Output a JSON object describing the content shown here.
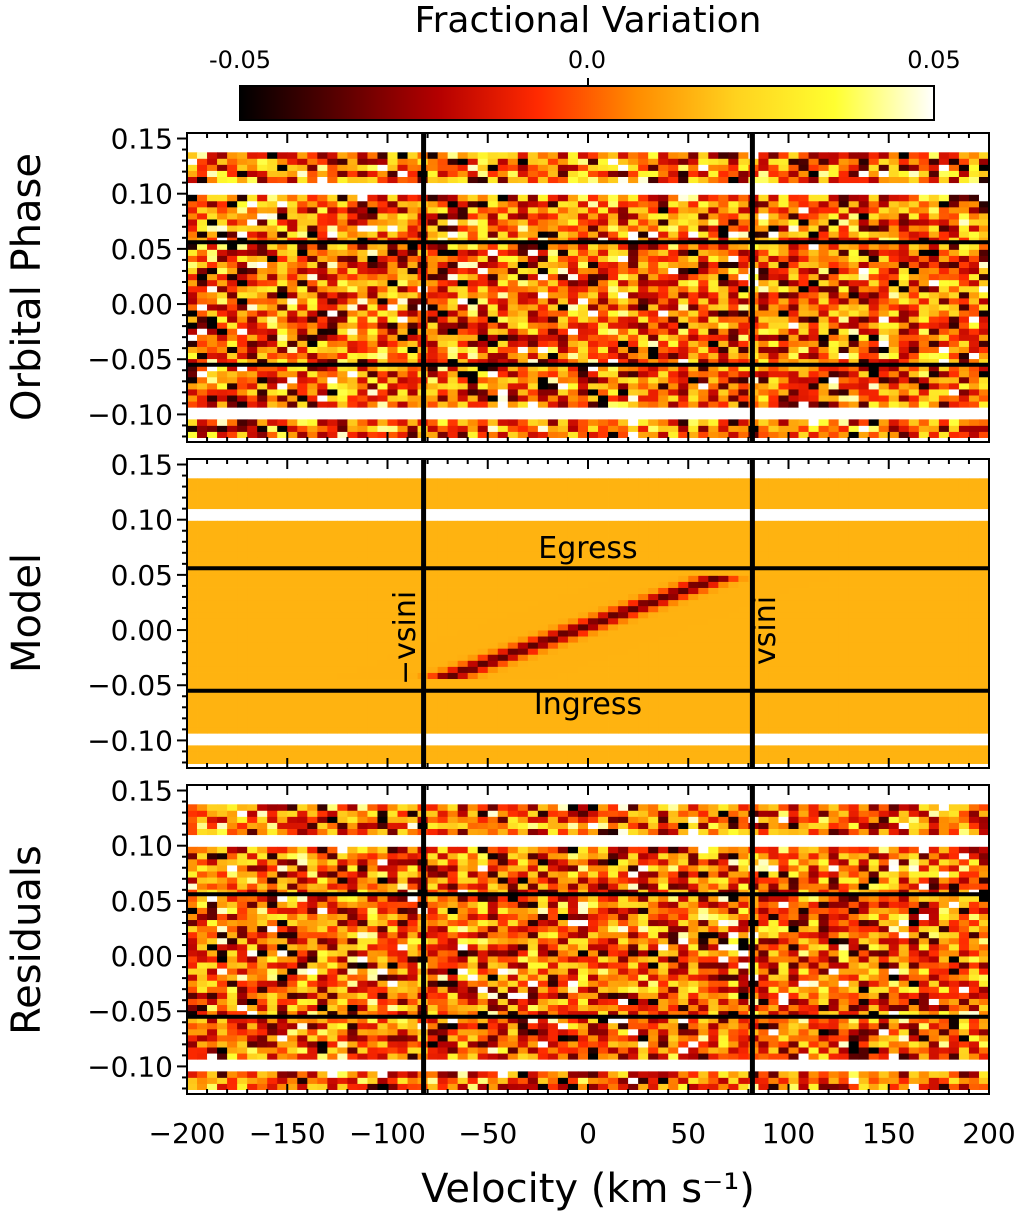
{
  "chart_data": {
    "type": "heatmap",
    "colorbar": {
      "title": "Fractional Variation",
      "range": [
        -0.05,
        0.05
      ],
      "ticks": [
        -0.05,
        0.0,
        0.05
      ],
      "tick_labels": [
        "-0.05",
        "0.0",
        "0.05"
      ],
      "colormap": [
        "#000000",
        "#5a0000",
        "#b40000",
        "#ff2a00",
        "#ff8c00",
        "#ffd21e",
        "#ffff30",
        "#ffffff"
      ]
    },
    "xlabel": "Velocity (km s⁻¹)",
    "xlim": [
      -200,
      200
    ],
    "xticks": [
      -200,
      -150,
      -100,
      -50,
      0,
      50,
      100,
      150,
      200
    ],
    "xtick_labels": [
      "−200",
      "−150",
      "−100",
      "−50",
      "0",
      "50",
      "100",
      "150",
      "200"
    ],
    "ylim": [
      -0.125,
      0.155
    ],
    "yticks": [
      -0.1,
      -0.05,
      0.0,
      0.05,
      0.1,
      0.15
    ],
    "ytick_labels": [
      "−0.10",
      "−0.05",
      "0.00",
      "0.05",
      "0.10",
      "0.15"
    ],
    "vsini": 82,
    "ingress_phase": -0.055,
    "egress_phase": 0.056,
    "panels": [
      {
        "name": "observed",
        "ylabel": "Orbital Phase"
      },
      {
        "name": "model",
        "ylabel": "Model",
        "model_background": 0.015,
        "planet_shadow": {
          "phase_start": -0.045,
          "phase_end": 0.045,
          "velocity_start": -70,
          "velocity_end": 65,
          "depth": -0.05
        },
        "annotations": {
          "egress": "Egress",
          "ingress": "Ingress",
          "minus_vsini": "−vsini",
          "vsini": "vsini"
        }
      },
      {
        "name": "residuals",
        "ylabel": "Residuals"
      }
    ],
    "exposures": {
      "phase_min": -0.121,
      "phase_max": 0.137,
      "phase_step": 0.0055,
      "gap_phases": [
        [
          -0.108,
          -0.094
        ],
        [
          0.095,
          0.106
        ]
      ],
      "velocity_bin": 5
    }
  }
}
